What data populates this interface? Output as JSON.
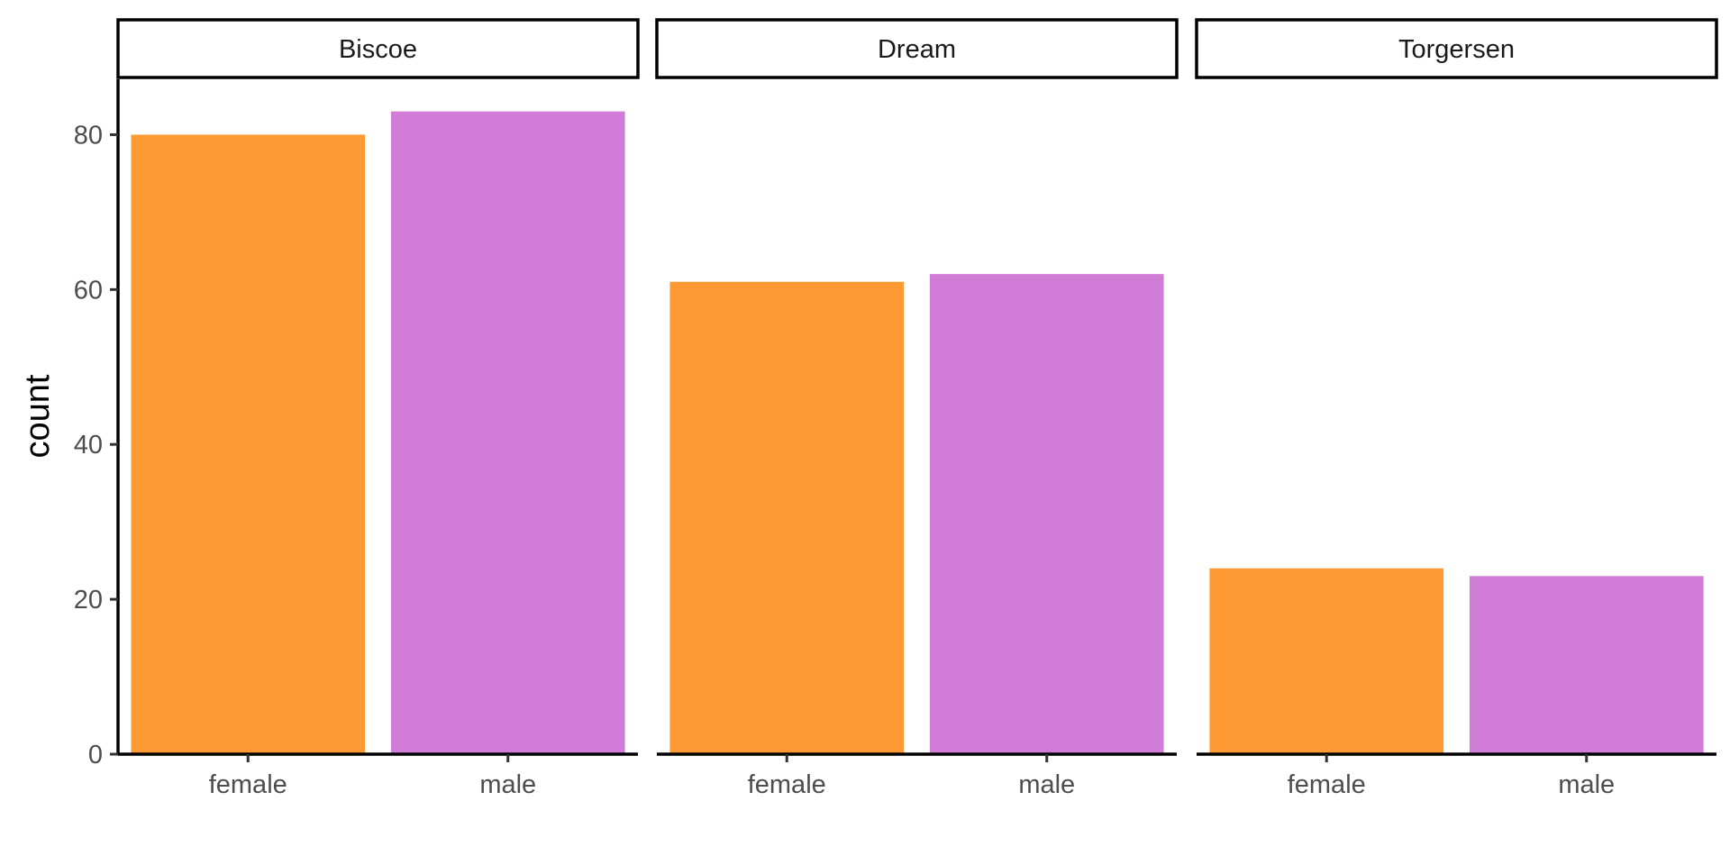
{
  "chart_data": {
    "type": "bar",
    "facets": [
      "Biscoe",
      "Dream",
      "Torgersen"
    ],
    "categories": [
      "female",
      "male"
    ],
    "series": [
      {
        "facet": "Biscoe",
        "values": [
          80,
          83
        ]
      },
      {
        "facet": "Dream",
        "values": [
          61,
          62
        ]
      },
      {
        "facet": "Torgersen",
        "values": [
          24,
          23
        ]
      }
    ],
    "colors": {
      "female": "#FF9933",
      "male": "#D17CD6"
    },
    "xlabel": "",
    "ylabel": "count",
    "ylim": [
      0,
      87.15
    ],
    "yticks": [
      0,
      20,
      40,
      60,
      80
    ],
    "grid": false,
    "legend": "none"
  }
}
